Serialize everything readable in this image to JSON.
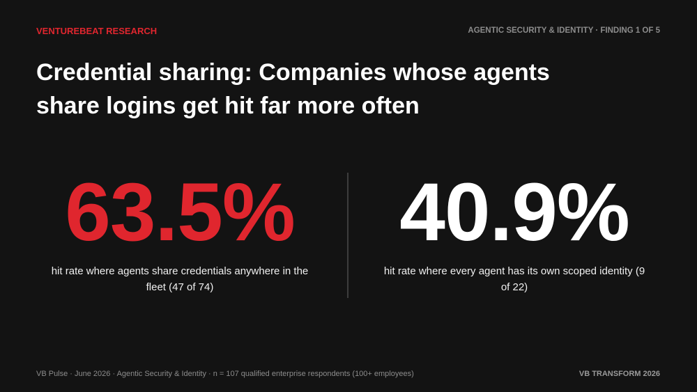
{
  "header": {
    "brand": "VENTUREBEAT RESEARCH",
    "section": "AGENTIC SECURITY & IDENTITY · FINDING 1 OF 5"
  },
  "title": "Credential sharing: Companies whose agents share logins get hit far more often",
  "stats": [
    {
      "value": "63.5%",
      "caption": "hit rate where agents share credentials anywhere in the fleet (47 of 74)"
    },
    {
      "value": "40.9%",
      "caption": "hit rate where every agent has its own scoped identity (9 of 22)"
    }
  ],
  "footer": {
    "source": "VB Pulse · June 2026 · Agentic Security & Identity · n = 107 qualified enterprise respondents (100+ employees)",
    "event": "VB TRANSFORM 2026"
  }
}
